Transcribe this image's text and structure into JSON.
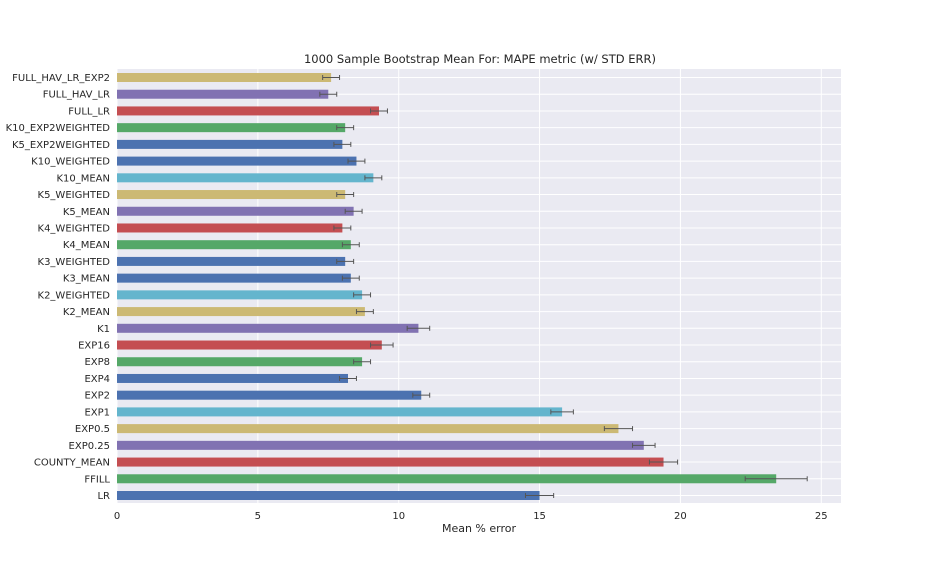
{
  "chart_data": {
    "type": "bar",
    "orientation": "horizontal",
    "title": "1000 Sample Bootstrap Mean For: MAPE metric (w/ STD ERR)",
    "xlabel": "Mean % error",
    "ylabel": "",
    "xlim": [
      0,
      25.7
    ],
    "xticks": [
      "0",
      "5",
      "10",
      "15",
      "20",
      "25"
    ],
    "grid": true,
    "legend": "none",
    "categories": [
      "LR",
      "FFILL",
      "COUNTY_MEAN",
      "EXP0.25",
      "EXP0.5",
      "EXP1",
      "EXP2",
      "EXP4",
      "EXP8",
      "EXP16",
      "K1",
      "K2_MEAN",
      "K2_WEIGHTED",
      "K3_MEAN",
      "K3_WEIGHTED",
      "K4_MEAN",
      "K4_WEIGHTED",
      "K5_MEAN",
      "K5_WEIGHTED",
      "K10_MEAN",
      "K10_WEIGHTED",
      "K5_EXP2WEIGHTED",
      "K10_EXP2WEIGHTED",
      "FULL_LR",
      "FULL_HAV_LR",
      "FULL_HAV_LR_EXP2"
    ],
    "values": [
      15.0,
      23.4,
      19.4,
      18.7,
      17.8,
      15.8,
      10.8,
      8.2,
      8.7,
      9.4,
      10.7,
      8.8,
      8.7,
      8.3,
      8.1,
      8.3,
      8.0,
      8.4,
      8.1,
      9.1,
      8.5,
      8.0,
      8.1,
      9.3,
      7.5,
      7.6
    ],
    "errors": [
      0.5,
      1.1,
      0.5,
      0.4,
      0.5,
      0.4,
      0.3,
      0.3,
      0.3,
      0.4,
      0.4,
      0.3,
      0.3,
      0.3,
      0.3,
      0.3,
      0.3,
      0.3,
      0.3,
      0.3,
      0.3,
      0.3,
      0.3,
      0.3,
      0.3,
      0.3
    ],
    "colors": [
      "#4c72b0",
      "#55a868",
      "#c44e52",
      "#8172b2",
      "#ccb974",
      "#64b5cd",
      "#4c72b0",
      "#4c72b0",
      "#55a868",
      "#c44e52",
      "#8172b2",
      "#ccb974",
      "#64b5cd",
      "#4c72b0",
      "#4c72b0",
      "#55a868",
      "#c44e52",
      "#8172b2",
      "#ccb974",
      "#64b5cd",
      "#4c72b0",
      "#4c72b0",
      "#55a868",
      "#c44e52",
      "#8172b2",
      "#ccb974"
    ],
    "background_color": "#eaeaf2",
    "grid_color": "#ffffff",
    "errorbar_color": "#555555"
  }
}
